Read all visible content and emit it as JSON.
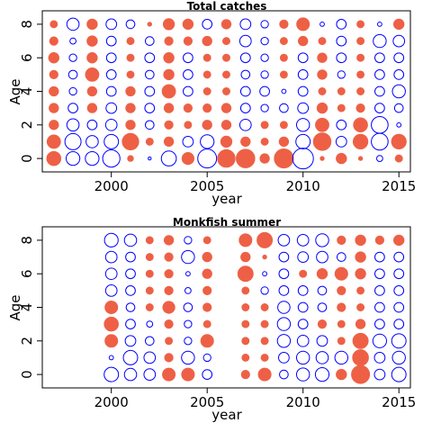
{
  "colors": {
    "positive": "#EE6045",
    "negative": "#0000FF",
    "frame": "#000000"
  },
  "chart_data": [
    {
      "type": "bubble",
      "title": "Total catches",
      "xlabel": "year",
      "ylabel": "Age",
      "xlim": [
        1996.4,
        2015.6
      ],
      "ylim": [
        -0.8,
        8.8
      ],
      "xticks": [
        "2000",
        "2005",
        "2010",
        "2015"
      ],
      "yticks": [
        "0",
        "2",
        "4",
        "6",
        "8"
      ],
      "grid": false,
      "years": [
        1997,
        1998,
        1999,
        2000,
        2001,
        2002,
        2003,
        2004,
        2005,
        2006,
        2007,
        2008,
        2009,
        2010,
        2011,
        2012,
        2013,
        2014,
        2015
      ],
      "ages": [
        0,
        1,
        2,
        3,
        4,
        5,
        6,
        7,
        8
      ],
      "residuals": [
        [
          1.1,
          1.0,
          0.5,
          0.5,
          0.5,
          0.4,
          0.6,
          0.4,
          0.3
        ],
        [
          -1.0,
          -1.4,
          -0.8,
          -0.5,
          -0.3,
          -0.4,
          -0.3,
          -0.2,
          -0.8
        ],
        [
          -1.0,
          -0.8,
          -0.5,
          0.5,
          0.5,
          1.0,
          0.6,
          0.6,
          0.6
        ],
        [
          -1.6,
          -1.1,
          -0.7,
          -0.6,
          -0.5,
          -0.5,
          -0.5,
          -0.5,
          -0.6
        ],
        [
          0.2,
          1.5,
          0.5,
          0.5,
          0.5,
          0.3,
          0.3,
          0.3,
          -0.4
        ],
        [
          -0.05,
          0.3,
          -0.4,
          -0.5,
          -0.5,
          -0.4,
          -0.5,
          -0.4,
          0.1
        ],
        [
          -1.2,
          0.5,
          0.4,
          0.5,
          1.0,
          0.6,
          0.6,
          0.4,
          0.7
        ],
        [
          0.8,
          -0.6,
          0.3,
          0.4,
          -0.5,
          -0.5,
          -0.5,
          0.4,
          0.6
        ],
        [
          -1.9,
          -1.0,
          0.5,
          0.4,
          0.3,
          0.3,
          0.3,
          0.5,
          -0.5
        ],
        [
          1.7,
          0.7,
          0.5,
          0.5,
          0.3,
          0.3,
          0.3,
          0.3,
          0.5
        ],
        [
          1.9,
          0.5,
          -0.7,
          -0.5,
          -0.5,
          -0.4,
          -0.5,
          -0.7,
          -0.6
        ],
        [
          0.5,
          0.3,
          0.3,
          -0.3,
          -0.5,
          -0.3,
          -0.3,
          -0.3,
          -0.3
        ],
        [
          2.0,
          0.5,
          0.3,
          -0.4,
          -0.1,
          0.3,
          0.3,
          0.3,
          0.4
        ],
        [
          -2.3,
          -1.1,
          -0.9,
          -0.6,
          -0.5,
          -0.5,
          -0.5,
          0.5,
          0.9
        ],
        [
          0.1,
          1.7,
          1.0,
          0.6,
          0.3,
          0.5,
          0.5,
          0.3,
          -0.1
        ],
        [
          0.6,
          -0.6,
          -0.5,
          0.3,
          0.3,
          -0.3,
          -0.5,
          -0.5,
          -0.5
        ],
        [
          0.1,
          1.2,
          1.1,
          0.4,
          0.3,
          0.3,
          0.3,
          0.3,
          0.3
        ],
        [
          -0.2,
          -1.5,
          -1.5,
          -0.5,
          -0.5,
          -0.5,
          -0.5,
          -0.9,
          -0.1
        ],
        [
          0.3,
          1.2,
          -0.1,
          -0.4,
          -0.9,
          -0.5,
          -0.5,
          -0.7,
          0.6
        ]
      ]
    },
    {
      "type": "bubble",
      "title": "Monkfish summer",
      "xlabel": "year",
      "ylabel": "Age",
      "xlim": [
        1996.4,
        2015.6
      ],
      "ylim": [
        -0.8,
        8.8
      ],
      "xticks": [
        "2000",
        "2005",
        "2010",
        "2015"
      ],
      "yticks": [
        "0",
        "2",
        "4",
        "6",
        "8"
      ],
      "grid": false,
      "years": [
        2000,
        2001,
        2002,
        2003,
        2004,
        2005,
        2007,
        2008,
        2009,
        2010,
        2011,
        2012,
        2013,
        2014,
        2015
      ],
      "ages": [
        0,
        1,
        2,
        3,
        4,
        5,
        6,
        7,
        8
      ],
      "residuals": [
        [
          -1.1,
          -0.1,
          0.9,
          1.1,
          0.9,
          -0.7,
          -0.7,
          -0.7,
          -1.0
        ],
        [
          -0.8,
          -1.1,
          -0.6,
          -0.5,
          -0.4,
          -0.5,
          -0.5,
          -0.5,
          -0.8
        ],
        [
          -0.7,
          -0.7,
          -0.4,
          -0.2,
          0.3,
          0.3,
          0.3,
          0.3,
          0.3
        ],
        [
          0.9,
          0.4,
          0.3,
          0.4,
          0.8,
          0.4,
          0.4,
          0.4,
          0.5
        ],
        [
          0.9,
          -0.9,
          -0.3,
          -0.3,
          -0.4,
          -0.2,
          -0.1,
          -0.9,
          -0.3
        ],
        [
          -0.5,
          -0.3,
          0.9,
          0.3,
          0.4,
          0.4,
          0.5,
          0.5,
          0.3
        ],
        [
          0.4,
          0.3,
          0.3,
          0.3,
          0.3,
          0.3,
          1.3,
          0.5,
          0.9
        ],
        [
          0.9,
          0.3,
          0.3,
          0.3,
          0.3,
          -0.3,
          -0.1,
          0.1,
          1.3
        ],
        [
          -0.4,
          -0.6,
          -0.9,
          -0.9,
          -0.8,
          -0.5,
          -0.5,
          -0.5,
          -0.7
        ],
        [
          -0.9,
          -0.9,
          -0.7,
          -0.5,
          -0.5,
          -0.5,
          0.3,
          -0.6,
          -0.7
        ],
        [
          -1.0,
          -0.8,
          -0.6,
          0.4,
          -0.4,
          -0.4,
          0.6,
          -0.7,
          -0.9
        ],
        [
          0.6,
          -0.9,
          0.3,
          0.3,
          0.4,
          0.4,
          0.9,
          -0.4,
          0.4
        ],
        [
          1.8,
          1.4,
          1.3,
          0.5,
          0.3,
          0.3,
          0.6,
          0.6,
          0.6
        ],
        [
          -0.6,
          -0.6,
          -1.0,
          -0.5,
          -0.5,
          -0.5,
          -0.5,
          -0.5,
          0.4
        ],
        [
          -1.1,
          -0.9,
          -1.1,
          -0.5,
          -0.5,
          -0.5,
          -0.5,
          -0.5,
          0.6
        ]
      ]
    }
  ]
}
